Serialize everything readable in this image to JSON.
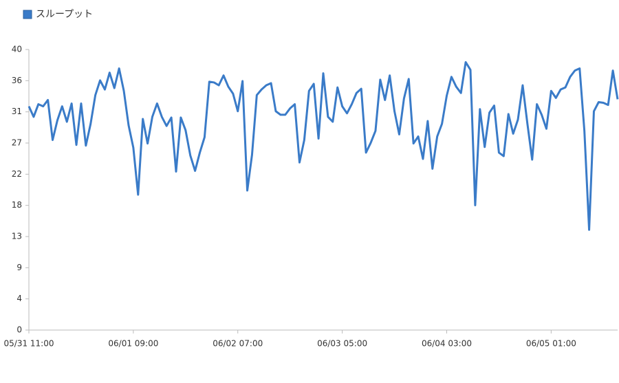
{
  "chart_data": {
    "type": "line",
    "categories": [
      "05/31 11:00",
      null,
      null,
      null,
      null,
      null,
      null,
      null,
      null,
      null,
      null,
      null,
      null,
      null,
      null,
      null,
      null,
      null,
      null,
      null,
      null,
      null,
      "06/01 09:00",
      null,
      null,
      null,
      null,
      null,
      null,
      null,
      null,
      null,
      null,
      null,
      null,
      null,
      null,
      null,
      null,
      null,
      null,
      null,
      null,
      null,
      "06/02 07:00",
      null,
      null,
      null,
      null,
      null,
      null,
      null,
      null,
      null,
      null,
      null,
      null,
      null,
      null,
      null,
      null,
      null,
      null,
      null,
      null,
      null,
      "06/03 05:00",
      null,
      null,
      null,
      null,
      null,
      null,
      null,
      null,
      null,
      null,
      null,
      null,
      null,
      null,
      null,
      null,
      null,
      null,
      null,
      null,
      null,
      "06/04 03:00",
      null,
      null,
      null,
      null,
      null,
      null,
      null,
      null,
      null,
      null,
      null,
      null,
      null,
      null,
      null,
      null,
      null,
      null,
      null,
      null,
      null,
      "06/05 01:00",
      null,
      null,
      null,
      null,
      null,
      null,
      null,
      null,
      null,
      null,
      null,
      null,
      null,
      null
    ],
    "series": [
      {
        "name": "スループット",
        "color": "#3a7bc8",
        "values": [
          31.9,
          30.4,
          32.2,
          31.9,
          32.8,
          27.1,
          29.9,
          31.9,
          29.7,
          32.3,
          26.4,
          32.3,
          26.3,
          29.4,
          33.5,
          35.6,
          34.3,
          36.7,
          34.5,
          37.3,
          34.1,
          29.2,
          26.0,
          19.3,
          30.1,
          26.6,
          30.4,
          32.3,
          30.4,
          29.1,
          30.3,
          22.6,
          30.3,
          28.5,
          24.9,
          22.7,
          25.3,
          27.5,
          35.4,
          35.3,
          34.9,
          36.3,
          34.7,
          33.7,
          31.2,
          35.5,
          19.9,
          25.0,
          33.5,
          34.3,
          34.9,
          35.2,
          31.2,
          30.7,
          30.7,
          31.6,
          32.2,
          23.9,
          27.1,
          34.1,
          35.1,
          27.3,
          36.6,
          30.4,
          29.7,
          34.6,
          31.9,
          30.9,
          32.2,
          33.8,
          34.4,
          25.3,
          26.7,
          28.4,
          35.7,
          32.8,
          36.3,
          31.2,
          27.9,
          33.0,
          35.8,
          26.6,
          27.6,
          24.4,
          29.8,
          23.0,
          27.6,
          29.4,
          33.4,
          36.1,
          34.7,
          33.8,
          38.2,
          37.1,
          17.8,
          31.5,
          26.1,
          31.0,
          32.0,
          25.3,
          24.8,
          30.8,
          28.0,
          30.0,
          34.9,
          29.4,
          24.3,
          32.2,
          30.7,
          28.7,
          34.1,
          33.1,
          34.3,
          34.6,
          36.1,
          37.0,
          37.3,
          28.4,
          14.3,
          31.2,
          32.5,
          32.4,
          32.1,
          37.0,
          32.9
        ]
      }
    ],
    "ylim": [
      0,
      40
    ],
    "yticks": [
      0,
      {
        "value": 4.444,
        "label": "4"
      },
      {
        "value": 8.889,
        "label": "9"
      },
      {
        "value": 13.333,
        "label": "13"
      },
      {
        "value": 17.778,
        "label": "18"
      },
      {
        "value": 22.222,
        "label": "22"
      },
      {
        "value": 26.667,
        "label": "27"
      },
      {
        "value": 31.111,
        "label": "31"
      },
      {
        "value": 35.556,
        "label": "36"
      },
      40
    ],
    "legend": "top-left"
  }
}
